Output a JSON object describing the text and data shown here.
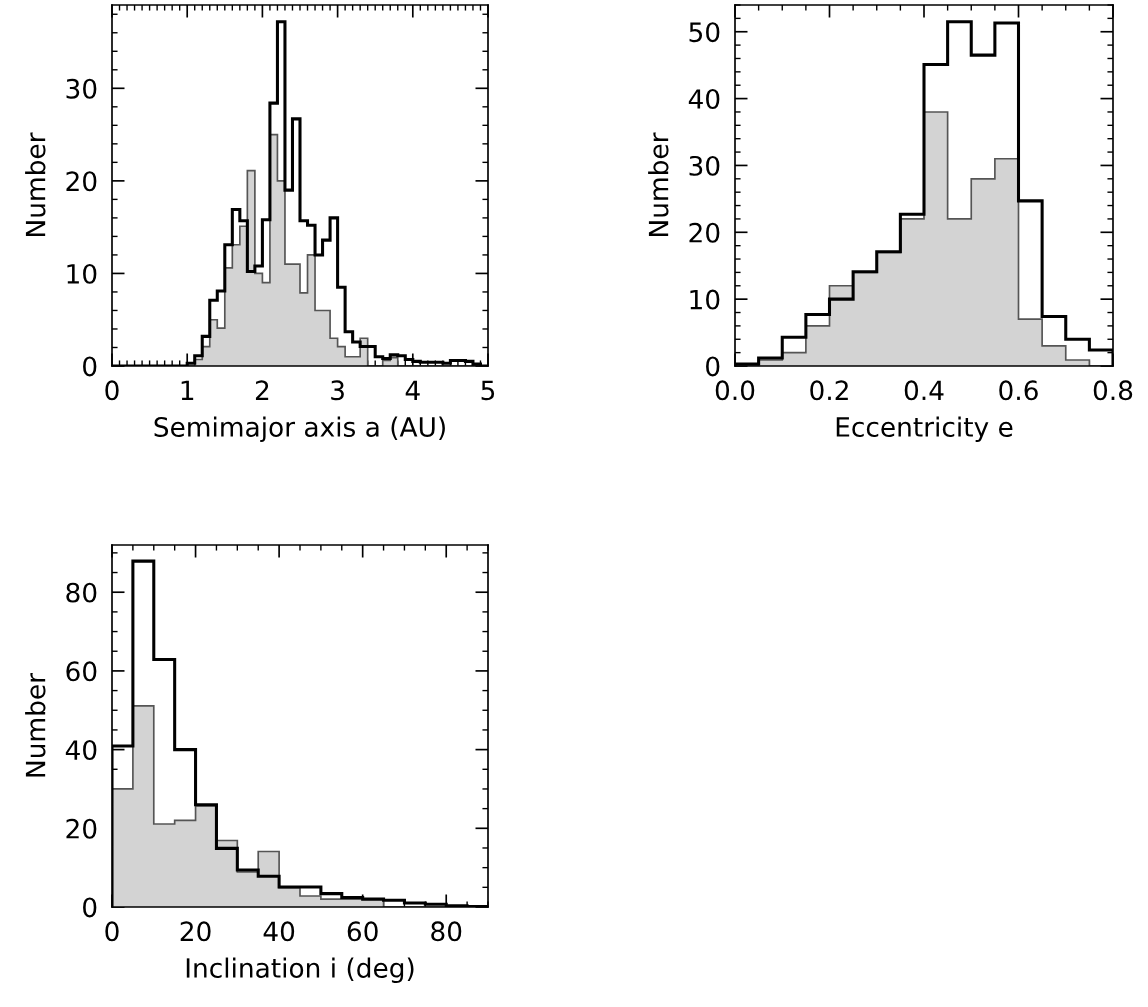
{
  "chart_data": [
    {
      "type": "histogram",
      "xlabel": "Semimajor axis a (AU)",
      "ylabel": "Number",
      "bins": [
        0,
        0.1,
        0.2,
        0.3,
        0.4,
        0.5,
        0.6,
        0.7,
        0.8,
        0.9,
        1.0,
        1.1,
        1.2,
        1.3,
        1.4,
        1.5,
        1.6,
        1.7,
        1.8,
        1.9,
        2.0,
        2.1,
        2.2,
        2.3,
        2.4,
        2.5,
        2.6,
        2.7,
        2.8,
        2.9,
        3.0,
        3.1,
        3.2,
        3.3,
        3.4,
        3.5,
        3.6,
        3.7,
        3.8,
        3.9,
        4.0,
        4.1,
        4.2,
        4.3,
        4.4,
        4.5,
        4.6,
        4.7,
        4.8,
        4.9,
        5.0
      ],
      "series": [
        {
          "type": "histogram",
          "color": "#d3d3d3",
          "values": [
            0,
            0,
            0,
            0,
            0,
            0,
            0,
            0,
            0,
            0,
            0,
            0.7,
            2.1,
            5.0,
            4.1,
            10.6,
            13.1,
            15.1,
            21.1,
            10.0,
            9.0,
            25.0,
            20.0,
            11.0,
            11.0,
            7.9,
            12.0,
            6.0,
            6.0,
            3.0,
            2.1,
            1.0,
            1.0,
            3.0,
            0,
            0,
            0.6,
            0.9,
            0,
            0,
            0,
            0,
            0,
            0,
            0,
            0,
            0,
            0,
            0,
            0
          ]
        },
        {
          "type": "histogram",
          "line_style": "solid",
          "color": "#000000",
          "values": [
            0,
            0,
            0,
            0,
            0,
            0,
            0,
            0,
            0,
            0,
            0.3,
            1.1,
            3.2,
            7.1,
            8.1,
            13.1,
            16.9,
            15.7,
            10.2,
            10.8,
            15.8,
            28.4,
            37.2,
            19.0,
            26.7,
            15.7,
            15.2,
            12.0,
            13.6,
            16.0,
            8.5,
            3.7,
            2.6,
            2.1,
            2.1,
            1.0,
            0.8,
            1.2,
            1.1,
            0.7,
            0.5,
            0.4,
            0.4,
            0.4,
            0.3,
            0.6,
            0.6,
            0.5,
            0.2,
            0
          ]
        }
      ],
      "xlim": [
        0,
        5
      ],
      "xticks": [
        0,
        1,
        2,
        3,
        4,
        5
      ],
      "ylim": [
        0,
        39
      ],
      "yticks": [
        0,
        10,
        20,
        30
      ]
    },
    {
      "type": "histogram",
      "xlabel": "Eccentricity e",
      "ylabel": "Number",
      "bins": [
        0,
        0.05,
        0.1,
        0.15,
        0.2,
        0.25,
        0.3,
        0.35,
        0.4,
        0.45,
        0.5,
        0.55,
        0.6,
        0.65,
        0.7,
        0.75,
        0.8
      ],
      "series": [
        {
          "type": "histogram",
          "color": "#d3d3d3",
          "values": [
            0,
            0.9,
            2.0,
            6.0,
            12.0,
            14.0,
            17.0,
            22.0,
            38.0,
            22.0,
            28.0,
            31.0,
            7.0,
            3.0,
            0.9,
            0
          ]
        },
        {
          "type": "histogram",
          "line_style": "solid",
          "color": "#000000",
          "values": [
            0.3,
            1.2,
            4.3,
            7.7,
            10.0,
            14.1,
            17.1,
            22.7,
            45.1,
            51.5,
            46.5,
            51.3,
            24.7,
            7.4,
            4.0,
            2.4
          ]
        }
      ],
      "xlim": [
        0,
        0.8
      ],
      "xticks": [
        {
          "value": 0,
          "label": "0.0"
        },
        {
          "value": 0.2,
          "label": "0.2"
        },
        {
          "value": 0.4,
          "label": "0.4"
        },
        {
          "value": 0.6,
          "label": "0.6"
        },
        {
          "value": 0.8,
          "label": "0.8"
        }
      ],
      "ylim": [
        0,
        54
      ],
      "yticks": [
        0,
        10,
        20,
        30,
        40,
        50
      ]
    },
    {
      "type": "histogram",
      "xlabel": "Inclination i (deg)",
      "ylabel": "Number",
      "bins": [
        0,
        5,
        10,
        15,
        20,
        25,
        30,
        35,
        40,
        45,
        50,
        55,
        60,
        65,
        70,
        75,
        80,
        85,
        90
      ],
      "series": [
        {
          "type": "histogram",
          "color": "#d3d3d3",
          "values": [
            30.0,
            51.1,
            21.1,
            22.0,
            25.7,
            16.9,
            8.9,
            14.1,
            4.9,
            2.8,
            2.0,
            2.0,
            2.0,
            0,
            0,
            0,
            0,
            0
          ]
        },
        {
          "type": "histogram",
          "line_style": "solid",
          "color": "#000000",
          "values": [
            40.9,
            87.9,
            62.9,
            40.0,
            26.0,
            14.9,
            9.4,
            7.8,
            5.1,
            5.1,
            3.4,
            2.4,
            2.0,
            1.7,
            1.0,
            0.7,
            0.3,
            0.1
          ]
        }
      ],
      "xlim": [
        0,
        90
      ],
      "xticks": [
        0,
        20,
        40,
        60,
        80
      ],
      "ylim": [
        0,
        92
      ],
      "yticks": [
        0,
        20,
        40,
        60,
        80
      ]
    }
  ]
}
